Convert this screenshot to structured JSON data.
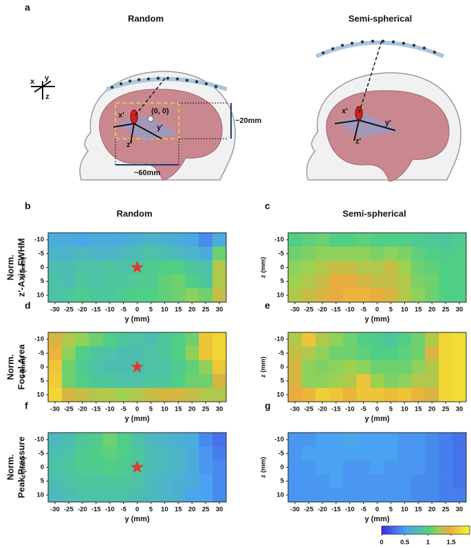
{
  "panel_a": {
    "letter": "a",
    "titles": [
      "Random",
      "Semi-spherical"
    ],
    "axes": [
      "x",
      "y",
      "z"
    ],
    "origin": "(0, 0)",
    "left_axes": [
      "x'",
      "y'",
      "z'"
    ],
    "right_axes": [
      "x'",
      "y'",
      "z'"
    ],
    "height_dim": "~20mm",
    "width_dim": "~60mm"
  },
  "colorbar": {
    "lim": [
      0,
      1.9
    ],
    "ticks": [
      0,
      0.5,
      1,
      1.5
    ],
    "colormap": [
      [
        0,
        "#3d2be0"
      ],
      [
        0.5,
        "#4aa3f2"
      ],
      [
        1.0,
        "#4fcf86"
      ],
      [
        1.25,
        "#9ed150"
      ],
      [
        1.45,
        "#eaac3e"
      ],
      [
        1.9,
        "#f6f72c"
      ]
    ]
  },
  "chart_data": [
    {
      "type": "heatmap",
      "panel": "b",
      "title": "Random",
      "row_label": [
        "Norm.",
        "z'-Axis FWHM"
      ],
      "xlabel": "y (mm)",
      "ylabel": "z (mm)",
      "x": [
        -30,
        -25,
        -20,
        -15,
        -10,
        -5,
        0,
        5,
        10,
        15,
        20,
        25,
        30
      ],
      "y": [
        -10,
        -5,
        0,
        5,
        10
      ],
      "xlim": [
        -32.5,
        32.5
      ],
      "ylim": [
        12.5,
        -12.5
      ],
      "xticks": [
        -30,
        -25,
        -20,
        -15,
        -10,
        -5,
        0,
        5,
        10,
        15,
        20,
        25,
        30
      ],
      "yticks": [
        -10,
        -5,
        0,
        5,
        10
      ],
      "star": [
        0,
        0
      ],
      "values": [
        [
          0.6,
          0.6,
          0.55,
          0.6,
          0.6,
          0.6,
          0.65,
          0.7,
          0.65,
          0.6,
          0.55,
          0.4,
          0.6
        ],
        [
          0.7,
          0.7,
          0.75,
          0.7,
          0.7,
          0.75,
          0.8,
          0.85,
          0.8,
          0.75,
          0.7,
          0.6,
          1.1
        ],
        [
          0.8,
          0.8,
          0.85,
          0.85,
          0.9,
          0.85,
          0.9,
          0.95,
          1.0,
          1.0,
          0.9,
          0.85,
          1.3
        ],
        [
          0.85,
          0.8,
          0.9,
          0.85,
          0.9,
          0.9,
          0.95,
          0.95,
          1.05,
          1.1,
          1.0,
          0.9,
          1.3
        ],
        [
          0.85,
          0.9,
          0.95,
          0.9,
          0.9,
          0.95,
          1.0,
          1.0,
          1.05,
          1.1,
          1.2,
          1.1,
          1.35
        ]
      ]
    },
    {
      "type": "heatmap",
      "panel": "c",
      "title": "Semi-spherical",
      "xlabel": "y (mm)",
      "ylabel": "z (mm)",
      "x": [
        -30,
        -25,
        -20,
        -15,
        -10,
        -5,
        0,
        5,
        10,
        15,
        20,
        25,
        30
      ],
      "y": [
        -10,
        -5,
        0,
        5,
        10
      ],
      "xlim": [
        -32.5,
        32.5
      ],
      "ylim": [
        12.5,
        -12.5
      ],
      "xticks": [
        -30,
        -25,
        -20,
        -15,
        -10,
        -5,
        0,
        5,
        10,
        15,
        20,
        25,
        30
      ],
      "yticks": [
        -10,
        -5,
        0,
        5,
        10
      ],
      "values": [
        [
          1.0,
          1.05,
          1.1,
          1.0,
          1.0,
          1.05,
          1.0,
          1.0,
          1.0,
          0.95,
          0.9,
          0.9,
          0.95
        ],
        [
          1.1,
          1.15,
          1.2,
          1.2,
          1.2,
          1.2,
          1.15,
          1.2,
          1.15,
          1.05,
          1.0,
          0.95,
          1.0
        ],
        [
          1.2,
          1.25,
          1.3,
          1.35,
          1.35,
          1.3,
          1.3,
          1.35,
          1.25,
          1.1,
          1.05,
          1.0,
          1.0
        ],
        [
          1.25,
          1.3,
          1.35,
          1.45,
          1.45,
          1.4,
          1.35,
          1.35,
          1.3,
          1.15,
          1.1,
          1.0,
          1.0
        ],
        [
          1.3,
          1.35,
          1.4,
          1.45,
          1.5,
          1.5,
          1.45,
          1.4,
          1.3,
          1.2,
          1.1,
          1.0,
          1.0
        ]
      ]
    },
    {
      "type": "heatmap",
      "panel": "d",
      "row_label": [
        "Norm.",
        "Focal Area"
      ],
      "xlabel": "y (mm)",
      "ylabel": "z (mm)",
      "x": [
        -30,
        -25,
        -20,
        -15,
        -10,
        -5,
        0,
        5,
        10,
        15,
        20,
        25,
        30
      ],
      "y": [
        -10,
        -5,
        0,
        5,
        10
      ],
      "xlim": [
        -32.5,
        32.5
      ],
      "ylim": [
        12.5,
        -12.5
      ],
      "xticks": [
        -30,
        -25,
        -20,
        -15,
        -10,
        -5,
        0,
        5,
        10,
        15,
        20,
        25,
        30
      ],
      "yticks": [
        -10,
        -5,
        0,
        5,
        10
      ],
      "star": [
        0,
        0
      ],
      "values": [
        [
          1.4,
          1.3,
          1.2,
          1.1,
          1.0,
          0.9,
          0.85,
          0.8,
          0.9,
          1.0,
          1.1,
          1.6,
          1.7
        ],
        [
          1.5,
          1.2,
          1.0,
          0.9,
          0.85,
          0.8,
          0.8,
          0.85,
          0.9,
          1.0,
          1.2,
          1.6,
          1.7
        ],
        [
          1.6,
          1.1,
          0.95,
          0.85,
          0.8,
          0.8,
          0.8,
          0.85,
          0.85,
          0.95,
          1.05,
          1.2,
          1.6
        ],
        [
          1.65,
          1.1,
          1.0,
          0.9,
          0.9,
          0.85,
          0.85,
          0.9,
          0.9,
          1.0,
          1.1,
          1.1,
          1.4
        ],
        [
          1.7,
          1.4,
          1.35,
          1.3,
          1.3,
          1.25,
          1.3,
          1.35,
          1.4,
          1.4,
          1.35,
          1.3,
          1.3
        ]
      ]
    },
    {
      "type": "heatmap",
      "panel": "e",
      "xlabel": "y (mm)",
      "ylabel": "z (mm)",
      "x": [
        -30,
        -25,
        -20,
        -15,
        -10,
        -5,
        0,
        5,
        10,
        15,
        20,
        25,
        30
      ],
      "y": [
        -10,
        -5,
        0,
        5,
        10
      ],
      "xlim": [
        -32.5,
        32.5
      ],
      "ylim": [
        12.5,
        -12.5
      ],
      "xticks": [
        -30,
        -25,
        -20,
        -15,
        -10,
        -5,
        0,
        5,
        10,
        15,
        20,
        25,
        30
      ],
      "yticks": [
        -10,
        -5,
        0,
        5,
        10
      ],
      "values": [
        [
          1.3,
          1.6,
          1.3,
          1.2,
          1.1,
          1.0,
          0.95,
          0.9,
          1.0,
          1.1,
          1.3,
          1.7,
          1.75
        ],
        [
          1.35,
          1.3,
          1.2,
          1.1,
          1.1,
          1.05,
          1.0,
          1.0,
          1.05,
          1.1,
          1.4,
          1.7,
          1.75
        ],
        [
          1.4,
          1.2,
          1.15,
          1.2,
          1.25,
          1.2,
          1.1,
          1.1,
          1.1,
          1.2,
          1.3,
          1.7,
          1.75
        ],
        [
          1.4,
          1.2,
          1.2,
          1.25,
          1.3,
          1.6,
          1.25,
          1.15,
          1.2,
          1.3,
          1.3,
          1.7,
          1.75
        ],
        [
          1.45,
          1.5,
          1.65,
          1.6,
          1.5,
          1.6,
          1.6,
          1.55,
          1.6,
          1.5,
          1.4,
          1.7,
          1.75
        ]
      ]
    },
    {
      "type": "heatmap",
      "panel": "f",
      "row_label": [
        "Norm.",
        "Peak Pressure"
      ],
      "xlabel": "y (mm)",
      "ylabel": "z (mm)",
      "x": [
        -30,
        -25,
        -20,
        -15,
        -10,
        -5,
        0,
        5,
        10,
        15,
        20,
        25,
        30
      ],
      "y": [
        -10,
        -5,
        0,
        5,
        10
      ],
      "xlim": [
        -32.5,
        32.5
      ],
      "ylim": [
        12.5,
        -12.5
      ],
      "xticks": [
        -30,
        -25,
        -20,
        -15,
        -10,
        -5,
        0,
        5,
        10,
        15,
        20,
        25,
        30
      ],
      "yticks": [
        -10,
        -5,
        0,
        5,
        10
      ],
      "star": [
        0,
        0
      ],
      "values": [
        [
          0.75,
          0.8,
          0.9,
          0.95,
          1.1,
          1.0,
          0.85,
          0.75,
          0.7,
          0.65,
          0.6,
          0.4,
          0.3
        ],
        [
          0.8,
          0.85,
          0.95,
          1.0,
          1.05,
          1.0,
          0.9,
          0.8,
          0.75,
          0.7,
          0.6,
          0.45,
          0.35
        ],
        [
          0.85,
          0.9,
          0.95,
          0.95,
          1.0,
          0.95,
          0.85,
          0.8,
          0.75,
          0.7,
          0.6,
          0.45,
          0.4
        ],
        [
          0.8,
          0.85,
          0.9,
          0.9,
          0.9,
          0.9,
          0.85,
          0.75,
          0.7,
          0.65,
          0.6,
          0.5,
          0.4
        ],
        [
          0.75,
          0.8,
          0.85,
          0.85,
          0.85,
          0.85,
          0.8,
          0.75,
          0.7,
          0.65,
          0.55,
          0.5,
          0.4
        ]
      ]
    },
    {
      "type": "heatmap",
      "panel": "g",
      "xlabel": "y (mm)",
      "ylabel": "z (mm)",
      "x": [
        -30,
        -25,
        -20,
        -15,
        -10,
        -5,
        0,
        5,
        10,
        15,
        20,
        25,
        30
      ],
      "y": [
        -10,
        -5,
        0,
        5,
        10
      ],
      "xlim": [
        -32.5,
        32.5
      ],
      "ylim": [
        12.5,
        -12.5
      ],
      "xticks": [
        -30,
        -25,
        -20,
        -15,
        -10,
        -5,
        0,
        5,
        10,
        15,
        20,
        25,
        30
      ],
      "yticks": [
        -10,
        -5,
        0,
        5,
        10
      ],
      "values": [
        [
          0.45,
          0.45,
          0.5,
          0.5,
          0.55,
          0.5,
          0.5,
          0.5,
          0.45,
          0.45,
          0.4,
          0.35,
          0.3
        ],
        [
          0.45,
          0.5,
          0.5,
          0.5,
          0.5,
          0.5,
          0.5,
          0.5,
          0.45,
          0.45,
          0.4,
          0.35,
          0.3
        ],
        [
          0.45,
          0.45,
          0.5,
          0.5,
          0.45,
          0.45,
          0.5,
          0.45,
          0.45,
          0.45,
          0.4,
          0.35,
          0.3
        ],
        [
          0.45,
          0.45,
          0.45,
          0.5,
          0.45,
          0.45,
          0.45,
          0.45,
          0.45,
          0.4,
          0.4,
          0.35,
          0.3
        ],
        [
          0.45,
          0.45,
          0.45,
          0.45,
          0.45,
          0.45,
          0.45,
          0.45,
          0.45,
          0.4,
          0.4,
          0.35,
          0.35
        ]
      ]
    }
  ]
}
